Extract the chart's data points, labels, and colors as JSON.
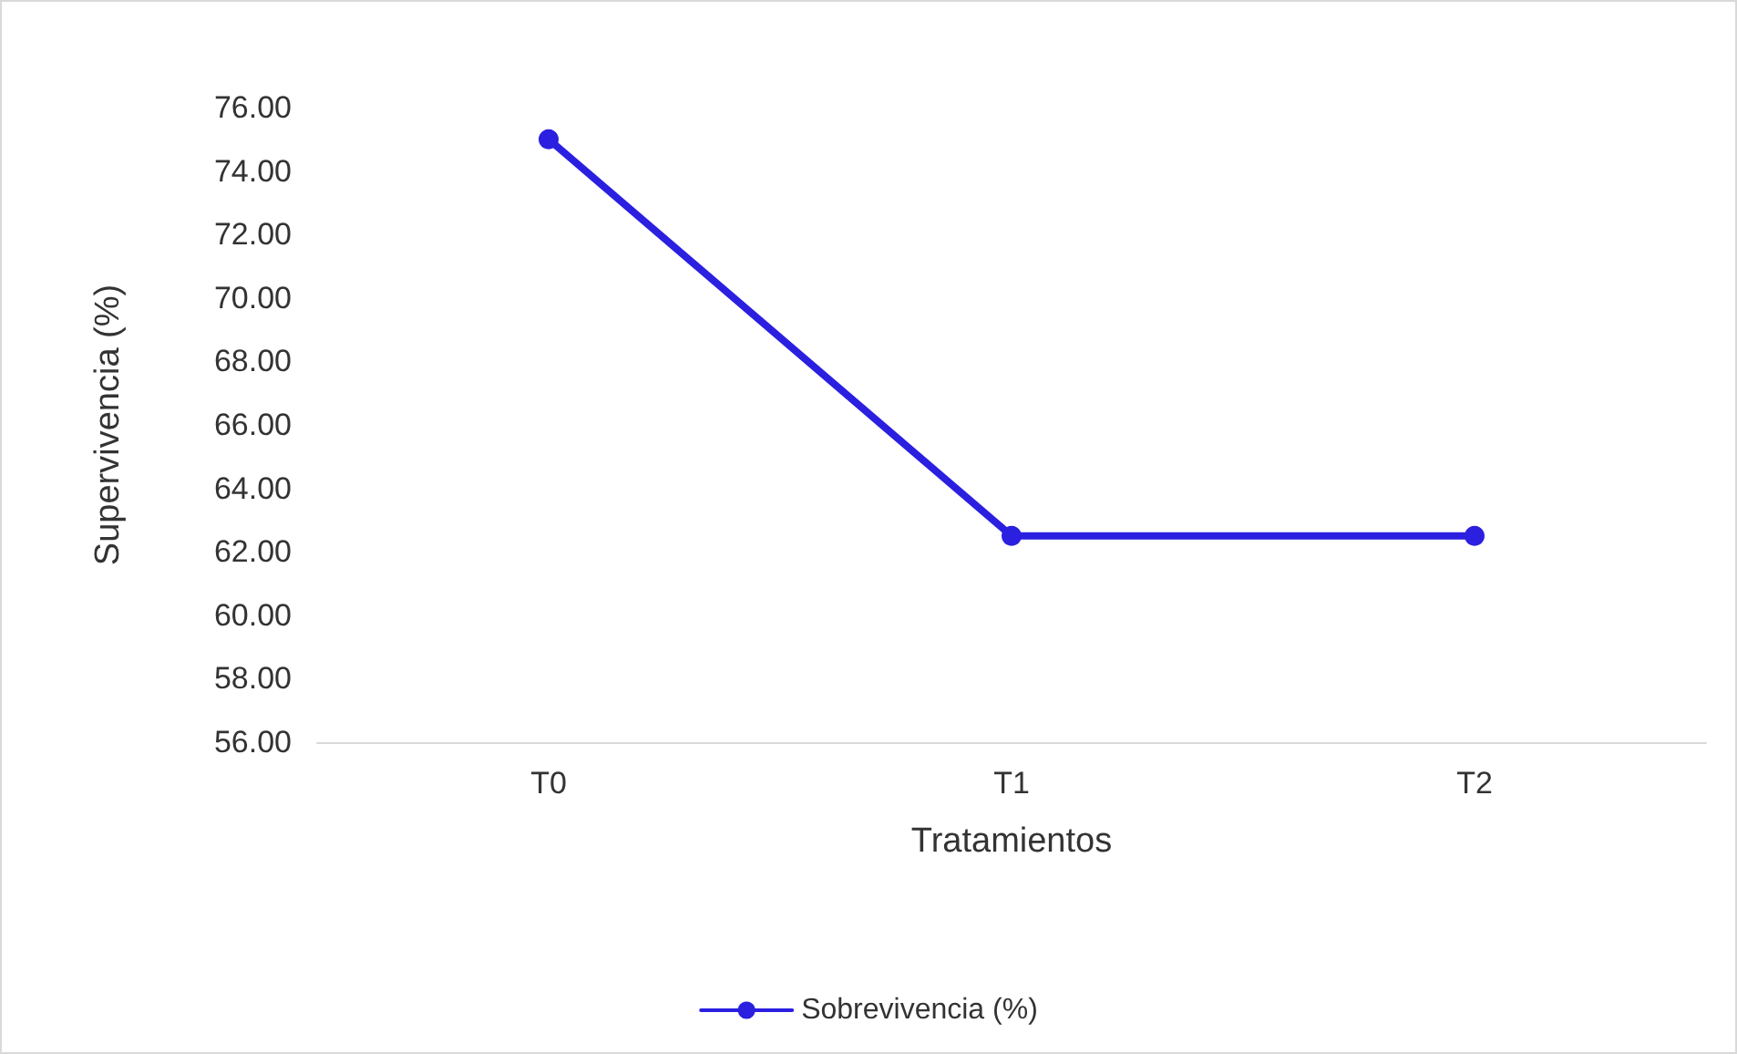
{
  "chart_data": {
    "type": "line",
    "xlabel": "Tratamientos",
    "ylabel": "Supervivencia (%)",
    "categories": [
      "T0",
      "T1",
      "T2"
    ],
    "series": [
      {
        "name": "Sobrevivencia (%)",
        "color": "#2b1fe0",
        "values": [
          75,
          62.5,
          62.5
        ]
      }
    ],
    "ylim": [
      56,
      76
    ],
    "yticks": [
      {
        "value": 56,
        "label": "56.00"
      },
      {
        "value": 58,
        "label": "58.00"
      },
      {
        "value": 60,
        "label": "60.00"
      },
      {
        "value": 62,
        "label": "62.00"
      },
      {
        "value": 64,
        "label": "64.00"
      },
      {
        "value": 66,
        "label": "66.00"
      },
      {
        "value": 68,
        "label": "68.00"
      },
      {
        "value": 70,
        "label": "70.00"
      },
      {
        "value": 72,
        "label": "72.00"
      },
      {
        "value": 74,
        "label": "74.00"
      },
      {
        "value": 76,
        "label": "76.00"
      }
    ],
    "grid": false,
    "legend": "bottom",
    "marker": "circle",
    "line_style": "solid"
  }
}
